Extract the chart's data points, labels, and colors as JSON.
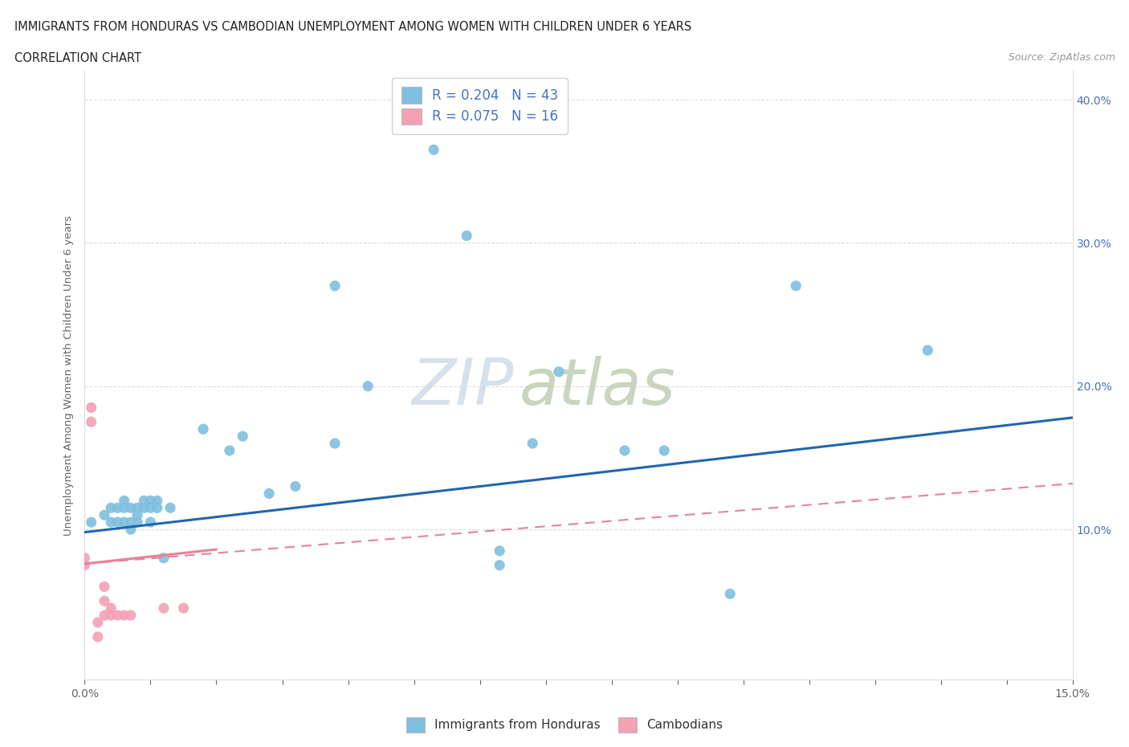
{
  "title_line1": "IMMIGRANTS FROM HONDURAS VS CAMBODIAN UNEMPLOYMENT AMONG WOMEN WITH CHILDREN UNDER 6 YEARS",
  "title_line2": "CORRELATION CHART",
  "source": "Source: ZipAtlas.com",
  "ylabel": "Unemployment Among Women with Children Under 6 years",
  "xlim": [
    0.0,
    0.15
  ],
  "ylim": [
    -0.005,
    0.42
  ],
  "blue_color": "#7fbfdf",
  "pink_color": "#f4a0b5",
  "blue_line_color": "#2166ac",
  "pink_line_color": "#e8829a",
  "watermark_zip": "ZIP",
  "watermark_atlas": "atlas",
  "honduras_x": [
    0.001,
    0.003,
    0.004,
    0.004,
    0.005,
    0.005,
    0.006,
    0.006,
    0.006,
    0.007,
    0.007,
    0.007,
    0.008,
    0.008,
    0.008,
    0.009,
    0.009,
    0.01,
    0.01,
    0.01,
    0.011,
    0.011,
    0.012,
    0.013,
    0.018,
    0.022,
    0.024,
    0.028,
    0.032,
    0.038,
    0.038,
    0.043,
    0.053,
    0.058,
    0.063,
    0.063,
    0.068,
    0.072,
    0.082,
    0.088,
    0.098,
    0.108,
    0.128
  ],
  "honduras_y": [
    0.105,
    0.11,
    0.105,
    0.115,
    0.105,
    0.115,
    0.105,
    0.115,
    0.12,
    0.1,
    0.105,
    0.115,
    0.105,
    0.11,
    0.115,
    0.115,
    0.12,
    0.105,
    0.115,
    0.12,
    0.115,
    0.12,
    0.08,
    0.115,
    0.17,
    0.155,
    0.165,
    0.125,
    0.13,
    0.16,
    0.27,
    0.2,
    0.365,
    0.305,
    0.075,
    0.085,
    0.16,
    0.21,
    0.155,
    0.155,
    0.055,
    0.27,
    0.225
  ],
  "cambodian_x": [
    0.0,
    0.0,
    0.001,
    0.001,
    0.002,
    0.002,
    0.003,
    0.003,
    0.003,
    0.004,
    0.004,
    0.005,
    0.006,
    0.007,
    0.012,
    0.015
  ],
  "cambodian_y": [
    0.08,
    0.075,
    0.185,
    0.175,
    0.025,
    0.035,
    0.04,
    0.05,
    0.06,
    0.04,
    0.045,
    0.04,
    0.04,
    0.04,
    0.045,
    0.045
  ],
  "blue_trend_x0": 0.0,
  "blue_trend_y0": 0.098,
  "blue_trend_x1": 0.15,
  "blue_trend_y1": 0.178,
  "pink_trend_x0": 0.0,
  "pink_trend_y0": 0.076,
  "pink_trend_x1": 0.15,
  "pink_trend_y1": 0.132
}
